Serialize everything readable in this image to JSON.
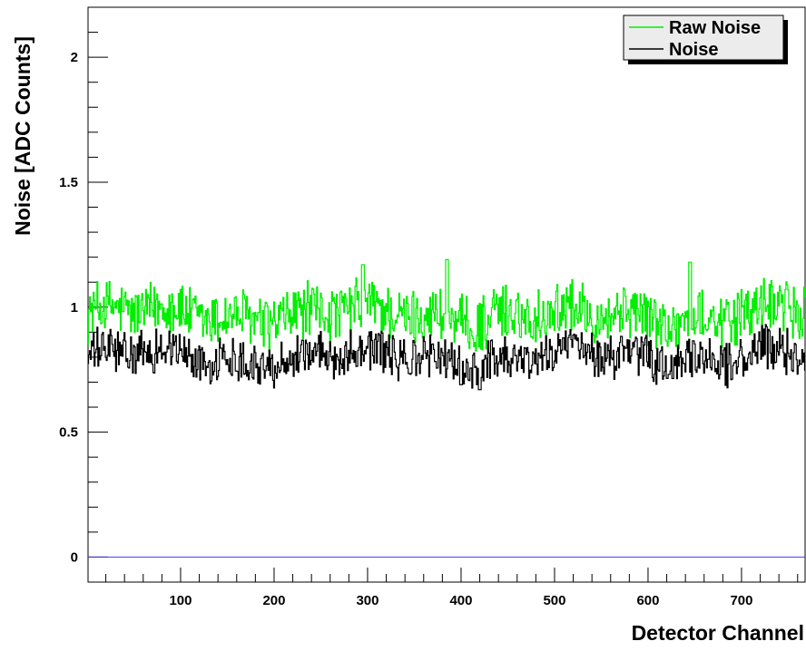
{
  "chart_data": {
    "type": "line",
    "title": "",
    "xlabel": "Detector Channel",
    "ylabel": "Noise [ADC Counts]",
    "xlim": [
      1,
      768
    ],
    "ylim": [
      -0.1,
      2.2
    ],
    "x_ticks": [
      100,
      200,
      300,
      400,
      500,
      600,
      700
    ],
    "y_ticks": [
      0,
      0.5,
      1,
      1.5,
      2
    ],
    "y_tick_labels": [
      "0",
      "0.5",
      "1",
      "1.5",
      "2"
    ],
    "grid": false,
    "legend_position": "top-right",
    "reference_line": {
      "y": 0,
      "color": "#3d3df0"
    },
    "series": [
      {
        "name": "Raw Noise",
        "color": "#00ee00",
        "mean": 0.97,
        "range": [
          0.82,
          1.19
        ],
        "peaks": [
          {
            "x": 295,
            "y": 1.17
          },
          {
            "x": 385,
            "y": 1.19
          },
          {
            "x": 645,
            "y": 1.18
          }
        ]
      },
      {
        "name": "Noise",
        "color": "#000000",
        "mean": 0.8,
        "range": [
          0.67,
          0.95
        ],
        "dips": [
          {
            "x": 400,
            "y": 0.69
          },
          {
            "x": 420,
            "y": 0.67
          }
        ]
      }
    ]
  }
}
